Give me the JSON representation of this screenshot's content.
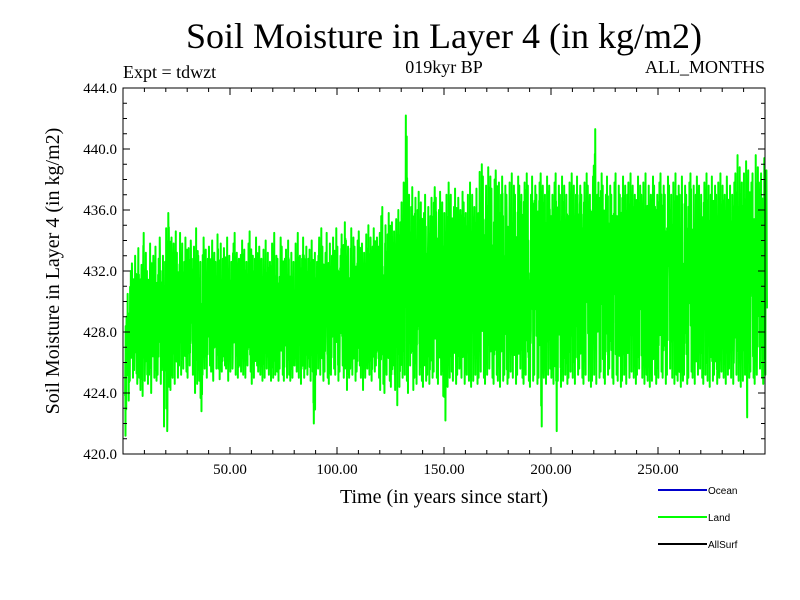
{
  "chart_data": {
    "type": "line",
    "title": "Soil Moisture in Layer 4 (in kg/m2)",
    "subtitle_left": "Expt = tdwzt",
    "subtitle_center": "019kyr BP",
    "subtitle_right": "ALL_MONTHS",
    "xlabel": "Time (in years since start)",
    "ylabel": "Soil Moisture in Layer 4 (in kg/m2)",
    "xlim": [
      0,
      300
    ],
    "ylim": [
      420,
      444
    ],
    "xticks": [
      50,
      100,
      150,
      200,
      250
    ],
    "xtick_labels": [
      "50.00",
      "100.00",
      "150.00",
      "200.00",
      "250.00"
    ],
    "yticks": [
      420,
      424,
      428,
      432,
      436,
      440,
      444
    ],
    "ytick_labels": [
      "420.0",
      "424.0",
      "428.0",
      "432.0",
      "436.0",
      "440.0",
      "444.0"
    ],
    "grid": false,
    "legend": [
      {
        "name": "Ocean",
        "color": "#0000cc"
      },
      {
        "name": "Land",
        "color": "#00ff00"
      },
      {
        "name": "AllSurf",
        "color": "#000000"
      }
    ],
    "series": [
      {
        "name": "Land",
        "color": "#00ff00",
        "x_start": 1,
        "x_step": 1,
        "monthly_range_note": "",
        "annual_min": [
          421.2,
          423.5,
          424.8,
          425.0,
          425.5,
          424.6,
          425.0,
          424.2,
          423.8,
          424.8,
          424.6,
          425.2,
          424.0,
          425.0,
          424.8,
          425.2,
          424.6,
          425.5,
          421.8,
          421.5,
          424.4,
          424.2,
          425.0,
          424.6,
          425.0,
          425.8,
          425.2,
          425.6,
          425.4,
          425.0,
          425.8,
          425.2,
          424.0,
          424.6,
          424.8,
          422.8,
          425.2,
          425.6,
          425.0,
          425.8,
          425.4,
          424.8,
          425.6,
          425.6,
          424.9,
          425.4,
          425.8,
          425.6,
          424.8,
          425.4,
          425.6,
          425.2,
          425.0,
          425.8,
          425.4,
          425.2,
          425.0,
          425.8,
          425.4,
          424.6,
          425.0,
          425.8,
          425.4,
          425.2,
          424.8,
          425.0,
          425.6,
          425.2,
          424.8,
          425.0,
          425.2,
          424.8,
          425.6,
          425.2,
          424.8,
          425.0,
          425.2,
          424.8,
          425.0,
          425.8,
          425.4,
          425.0,
          424.6,
          425.0,
          425.6,
          425.2,
          424.8,
          425.4,
          422.0,
          425.2,
          425.6,
          425.2,
          424.8,
          425.4,
          425.0,
          424.6,
          425.2,
          425.6,
          425.2,
          424.8,
          425.4,
          425.8,
          425.0,
          424.2,
          425.0,
          425.6,
          425.2,
          424.8,
          425.4,
          425.8,
          425.0,
          424.2,
          425.0,
          425.6,
          425.2,
          424.8,
          425.4,
          425.8,
          425.0,
          424.2,
          424.6,
          424.0,
          425.2,
          424.8,
          424.4,
          425.8,
          424.2,
          423.2,
          424.4,
          425.0,
          425.2,
          424.8,
          424.0,
          425.8,
          424.2,
          425.0,
          424.6,
          425.2,
          424.8,
          424.4,
          424.8,
          425.2,
          424.6,
          425.0,
          425.4,
          425.0,
          424.6,
          425.2,
          423.8,
          422.2,
          424.4,
          425.0,
          425.4,
          424.8,
          424.6,
          425.2,
          425.6,
          425.0,
          424.6,
          425.2,
          424.8,
          424.4,
          424.8,
          425.2,
          424.6,
          425.0,
          425.4,
          425.0,
          424.6,
          425.2,
          425.6,
          425.0,
          424.6,
          425.2,
          424.8,
          424.4,
          424.8,
          425.2,
          424.6,
          425.0,
          425.4,
          425.0,
          424.6,
          425.2,
          425.6,
          425.0,
          424.6,
          425.2,
          424.8,
          424.4,
          424.8,
          425.2,
          424.6,
          425.0,
          421.8,
          425.0,
          424.6,
          425.2,
          425.6,
          425.0,
          424.6,
          421.5,
          424.8,
          424.4,
          424.8,
          425.2,
          424.6,
          425.0,
          425.4,
          425.0,
          424.6,
          425.2,
          425.6,
          425.0,
          424.6,
          425.2,
          424.8,
          424.4,
          424.8,
          425.2,
          424.6,
          425.0,
          425.4,
          425.0,
          424.6,
          425.2,
          425.6,
          425.0,
          424.6,
          425.2,
          424.8,
          424.4,
          424.8,
          425.2,
          424.6,
          425.0,
          425.4,
          425.0,
          424.6,
          425.2,
          425.6,
          425.0,
          424.6,
          425.2,
          424.8,
          424.4,
          424.8,
          425.2,
          424.6,
          425.0,
          425.4,
          425.0,
          424.6,
          425.2,
          425.6,
          425.0,
          424.6,
          425.2,
          424.8,
          424.4,
          424.8,
          425.2,
          424.6,
          425.0,
          425.4,
          425.0,
          424.6,
          425.2,
          425.6,
          425.0,
          424.6,
          425.2,
          424.8,
          424.4,
          424.8,
          425.2,
          424.6,
          425.0,
          425.4,
          425.0,
          424.6,
          425.2,
          425.6,
          425.0,
          424.6,
          425.2,
          424.8,
          424.4,
          424.8,
          425.2,
          422.4,
          425.0,
          425.4,
          425.0,
          424.6,
          425.2,
          425.6,
          425.0,
          424.6,
          425.2,
          424.8
        ],
        "annual_max": [
          429.0,
          430.5,
          432.0,
          432.5,
          433.0,
          431.8,
          433.5,
          432.4,
          434.5,
          433.2,
          432.0,
          433.8,
          432.5,
          433.0,
          433.6,
          432.8,
          434.2,
          433.0,
          432.6,
          434.8,
          435.8,
          434.2,
          433.8,
          434.6,
          433.2,
          434.5,
          433.8,
          432.6,
          434.2,
          433.5,
          434.0,
          432.8,
          433.6,
          434.8,
          433.0,
          432.6,
          434.2,
          433.4,
          432.8,
          433.6,
          434.0,
          433.2,
          432.6,
          434.4,
          433.8,
          432.8,
          433.5,
          434.2,
          433.0,
          432.6,
          433.8,
          434.5,
          433.2,
          432.8,
          434.0,
          433.4,
          432.6,
          433.8,
          434.6,
          433.0,
          432.8,
          434.2,
          433.6,
          432.8,
          433.4,
          434.0,
          433.2,
          432.6,
          433.8,
          434.5,
          433.0,
          432.8,
          434.2,
          433.6,
          432.8,
          433.4,
          434.0,
          433.2,
          432.6,
          433.8,
          434.5,
          433.0,
          432.8,
          434.2,
          433.6,
          432.8,
          433.4,
          434.0,
          433.2,
          432.6,
          434.2,
          434.8,
          433.6,
          433.2,
          434.5,
          433.8,
          433.0,
          434.2,
          434.8,
          433.6,
          433.0,
          434.4,
          435.2,
          434.0,
          433.6,
          434.8,
          434.2,
          433.6,
          434.0,
          434.6,
          433.8,
          433.2,
          434.4,
          435.0,
          434.2,
          433.6,
          434.8,
          434.2,
          433.6,
          435.6,
          436.2,
          435.0,
          434.4,
          435.8,
          435.2,
          434.6,
          435.4,
          436.0,
          435.2,
          436.5,
          437.8,
          442.2,
          437.0,
          436.2,
          437.5,
          436.8,
          436.0,
          437.2,
          436.5,
          435.8,
          437.0,
          436.2,
          435.6,
          436.8,
          437.5,
          436.8,
          436.0,
          437.2,
          436.5,
          435.8,
          437.0,
          437.8,
          437.0,
          436.2,
          437.4,
          436.8,
          436.0,
          437.2,
          436.5,
          435.8,
          437.0,
          437.8,
          437.0,
          436.2,
          437.4,
          438.5,
          439.0,
          438.2,
          437.6,
          438.8,
          438.2,
          437.4,
          438.0,
          438.6,
          437.8,
          437.0,
          438.2,
          437.6,
          437.0,
          437.8,
          438.4,
          437.6,
          437.0,
          438.2,
          437.6,
          437.0,
          437.8,
          438.4,
          437.6,
          437.0,
          438.2,
          437.6,
          437.0,
          437.8,
          438.4,
          437.6,
          437.0,
          438.2,
          437.6,
          437.0,
          437.8,
          438.4,
          437.6,
          437.0,
          438.2,
          437.6,
          437.0,
          437.8,
          438.4,
          437.6,
          437.0,
          438.2,
          437.6,
          437.0,
          437.8,
          438.4,
          437.6,
          437.0,
          438.2,
          441.3,
          437.0,
          437.8,
          438.4,
          437.6,
          437.0,
          438.2,
          437.6,
          437.0,
          437.8,
          438.4,
          437.6,
          437.0,
          438.2,
          437.6,
          437.0,
          437.8,
          438.4,
          437.6,
          437.0,
          438.2,
          437.6,
          437.0,
          437.8,
          438.4,
          437.6,
          437.0,
          438.2,
          437.6,
          437.0,
          437.8,
          438.4,
          437.6,
          437.0,
          438.2,
          437.6,
          437.0,
          437.8,
          438.4,
          437.6,
          437.0,
          438.2,
          437.6,
          437.0,
          437.8,
          438.4,
          437.6,
          437.0,
          438.2,
          437.6,
          437.0,
          437.8,
          438.4,
          437.6,
          437.0,
          438.2,
          437.6,
          437.0,
          437.8,
          438.4,
          437.6,
          437.0,
          438.2,
          437.6,
          437.0,
          437.8,
          438.4,
          439.6,
          438.8,
          437.8,
          438.4,
          439.2,
          438.6,
          437.8,
          438.4,
          439.6,
          438.8,
          437.8,
          438.4,
          439.4,
          438.6
        ]
      }
    ]
  }
}
